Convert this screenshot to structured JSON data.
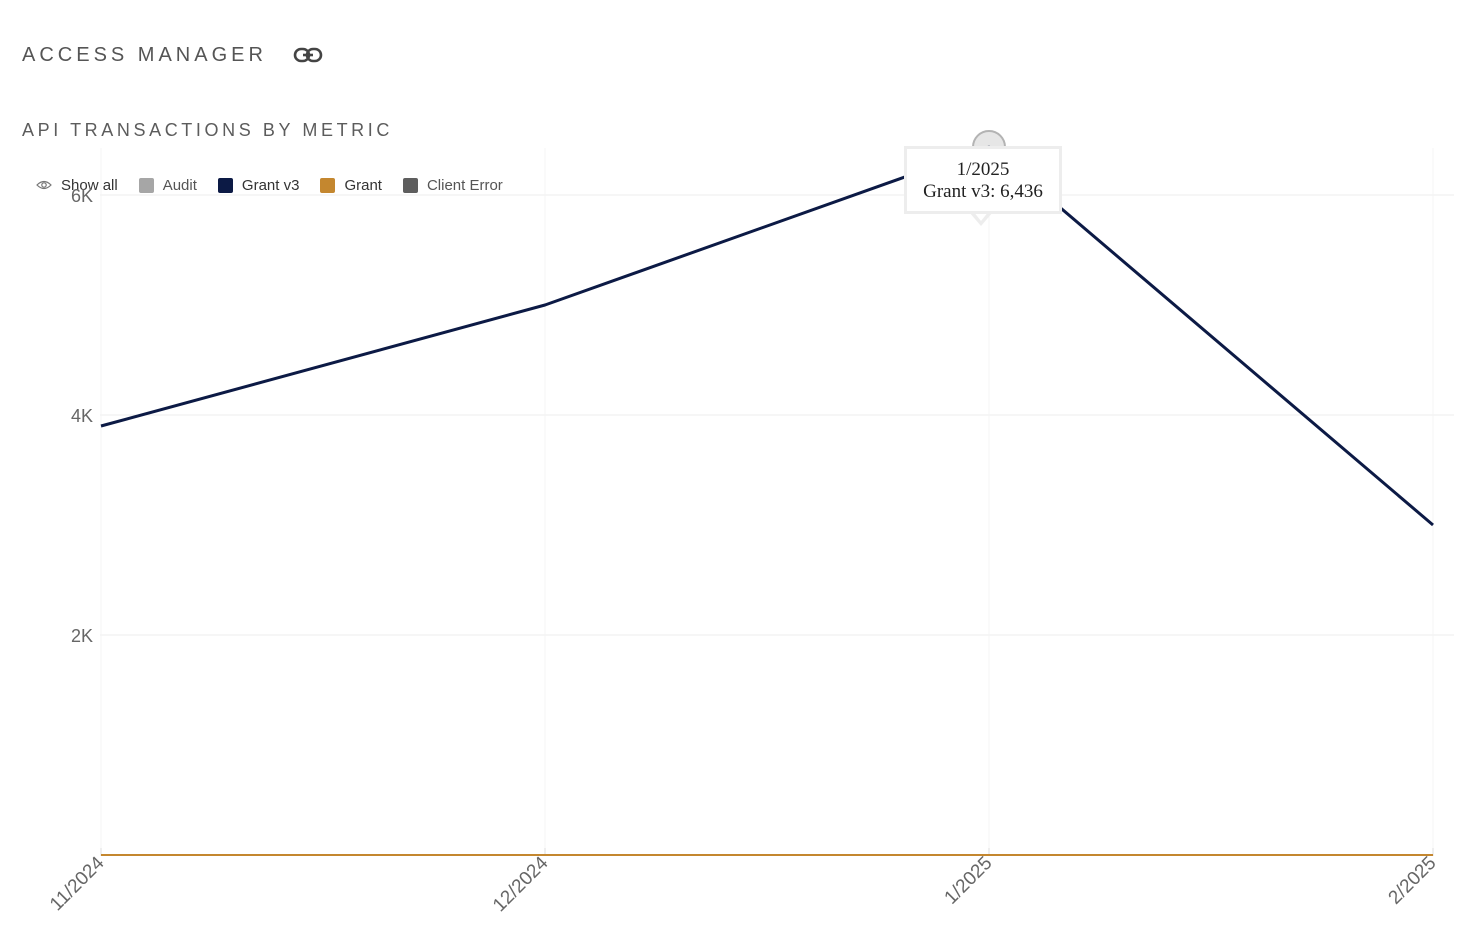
{
  "header": {
    "title": "ACCESS MANAGER",
    "link_icon": "link-icon"
  },
  "legend": {
    "show_all_label": "Show all",
    "show_all_icon": "eye-icon",
    "items": [
      {
        "label": "Audit",
        "color": "#a6a6a6"
      },
      {
        "label": "Grant v3",
        "color": "#0c1a45"
      },
      {
        "label": "Grant",
        "color": "#c4872f"
      },
      {
        "label": "Client Error",
        "color": "#5e5e5e"
      }
    ]
  },
  "tooltip": {
    "date": "1/2025",
    "text": "Grant v3: 6,436"
  },
  "chart_data": {
    "type": "line",
    "title": "API TRANSACTIONS BY METRIC",
    "categories": [
      "11/2024",
      "12/2024",
      "1/2025",
      "2/2025"
    ],
    "ylim": [
      0,
      7000
    ],
    "yticks": [
      {
        "value": 2000,
        "label": "2K"
      },
      {
        "value": 4000,
        "label": "4K"
      },
      {
        "value": 6000,
        "label": "6K"
      }
    ],
    "grid": true,
    "legend_position": "top-left",
    "series": [
      {
        "name": "Grant v3",
        "color": "#0c1a45",
        "values": [
          3900,
          5000,
          6436,
          3000
        ]
      },
      {
        "name": "Grant",
        "color": "#c4872f",
        "values": [
          0,
          0,
          0,
          0
        ]
      }
    ],
    "highlight": {
      "series": "Grant v3",
      "category": "1/2025",
      "value": 6436
    }
  }
}
